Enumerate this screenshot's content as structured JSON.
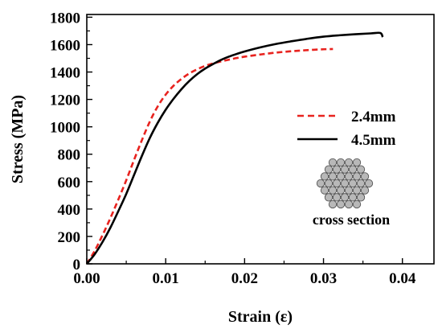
{
  "chart_data": {
    "type": "line",
    "xlabel": "Strain (ε)",
    "ylabel": "Stress (MPa)",
    "xlim": [
      0,
      0.044
    ],
    "ylim": [
      0,
      1820
    ],
    "x_ticks": [
      "0.00",
      "0.01",
      "0.02",
      "0.03",
      "0.04"
    ],
    "x_tick_values": [
      0,
      0.01,
      0.02,
      0.03,
      0.04
    ],
    "y_ticks": [
      "0",
      "200",
      "400",
      "600",
      "800",
      "1000",
      "1200",
      "1400",
      "1600",
      "1800"
    ],
    "y_tick_values": [
      0,
      200,
      400,
      600,
      800,
      1000,
      1200,
      1400,
      1600,
      1800
    ],
    "legend_position": "right",
    "series": [
      {
        "name": "2.4mm",
        "color": "#e8231f",
        "style": "dashed",
        "x": [
          0,
          0.001,
          0.002,
          0.003,
          0.004,
          0.005,
          0.006,
          0.007,
          0.008,
          0.009,
          0.01,
          0.011,
          0.012,
          0.013,
          0.014,
          0.015,
          0.016,
          0.017,
          0.018,
          0.019,
          0.02,
          0.022,
          0.024,
          0.026,
          0.028,
          0.03,
          0.0312
        ],
        "y": [
          0,
          95,
          210,
          335,
          470,
          610,
          760,
          905,
          1040,
          1150,
          1235,
          1300,
          1350,
          1390,
          1420,
          1445,
          1463,
          1477,
          1490,
          1502,
          1512,
          1528,
          1542,
          1552,
          1560,
          1566,
          1568
        ]
      },
      {
        "name": "4.5mm",
        "color": "#000000",
        "style": "solid",
        "x": [
          0,
          0.001,
          0.002,
          0.003,
          0.004,
          0.005,
          0.006,
          0.007,
          0.008,
          0.009,
          0.01,
          0.011,
          0.012,
          0.013,
          0.014,
          0.015,
          0.016,
          0.017,
          0.018,
          0.019,
          0.02,
          0.022,
          0.024,
          0.026,
          0.028,
          0.03,
          0.032,
          0.034,
          0.036,
          0.0372,
          0.0375
        ],
        "y": [
          0,
          70,
          160,
          265,
          385,
          510,
          650,
          790,
          920,
          1030,
          1125,
          1205,
          1275,
          1335,
          1385,
          1425,
          1458,
          1488,
          1512,
          1532,
          1550,
          1580,
          1605,
          1625,
          1643,
          1658,
          1668,
          1676,
          1682,
          1685,
          1655
        ]
      }
    ],
    "annotations": [
      "cross section"
    ]
  },
  "colors": {
    "dashed_series": "#e8231f",
    "solid_series": "#000000",
    "strand_fill": "#b8b8b8",
    "strand_stroke": "#555555"
  },
  "icons": {
    "inset": "wire-rope-cross-section-icon"
  }
}
